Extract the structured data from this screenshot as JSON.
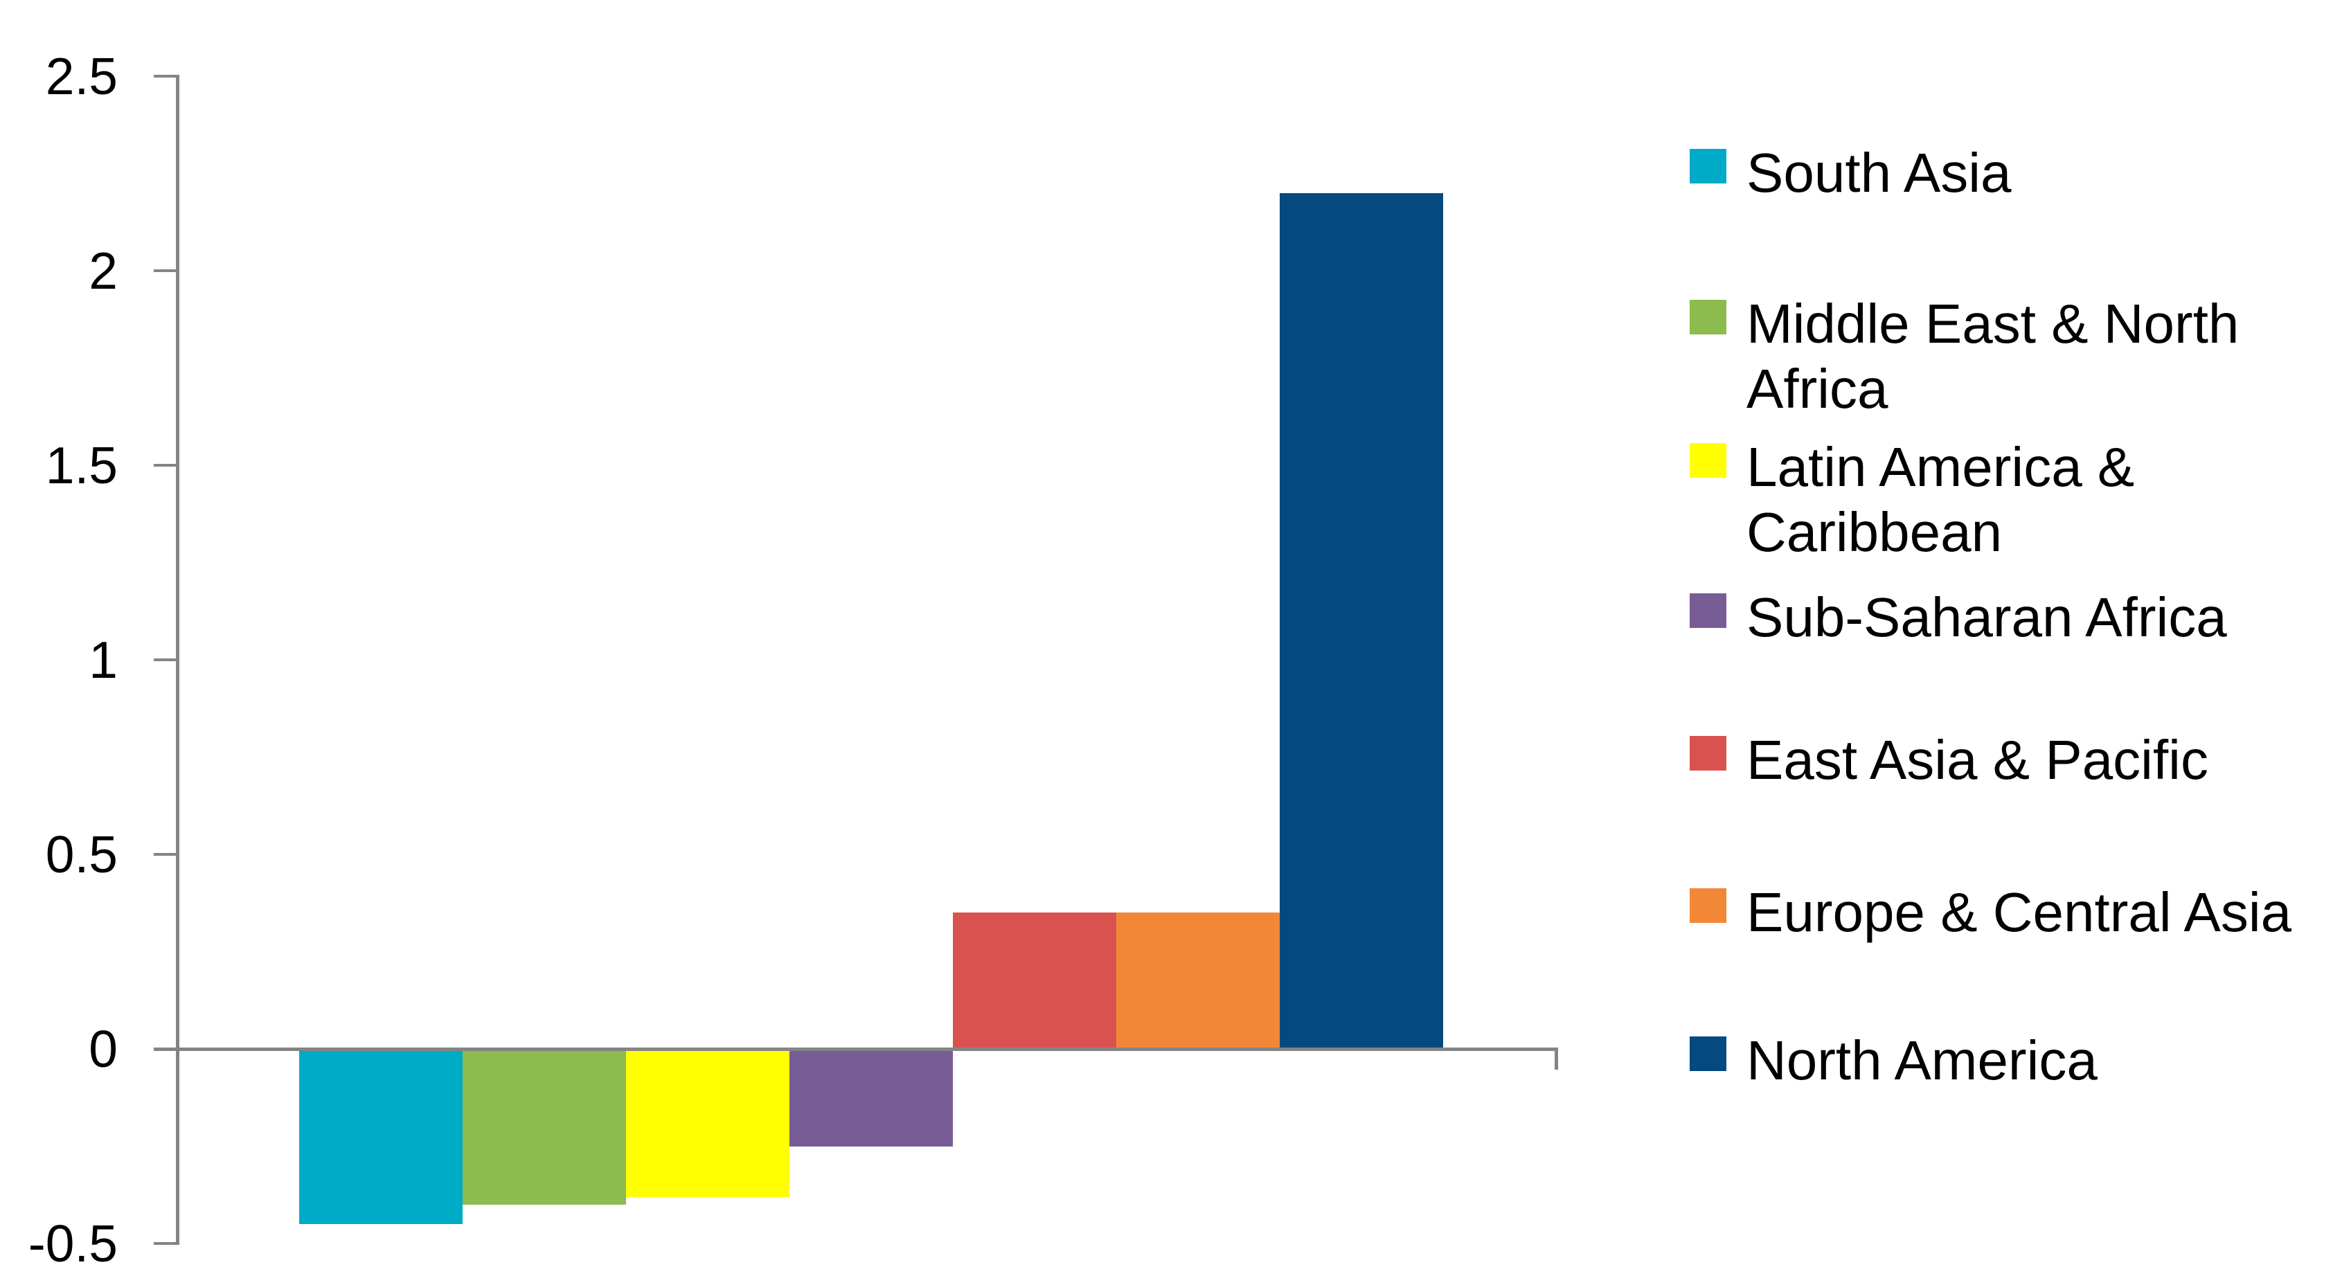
{
  "chart_data": {
    "type": "bar",
    "title": "",
    "categories": [
      ""
    ],
    "series": [
      {
        "name": "South Asia",
        "value": -0.45,
        "color": "#00ABC8"
      },
      {
        "name": "Middle East & North Africa",
        "value": -0.4,
        "color": "#8CBB4E"
      },
      {
        "name": "Latin America & Caribbean",
        "value": -0.38,
        "color": "#FFFF00"
      },
      {
        "name": "Sub-Saharan Africa",
        "value": -0.25,
        "color": "#785C95"
      },
      {
        "name": "East Asia & Pacific",
        "value": 0.35,
        "color": "#D95250"
      },
      {
        "name": "Europe & Central Asia",
        "value": 0.35,
        "color": "#F28837"
      },
      {
        "name": "North America",
        "value": 2.2,
        "color": "#04497F"
      }
    ],
    "xlabel": "",
    "ylabel": "",
    "ylim": [
      -0.5,
      2.5
    ],
    "ytick_values": [
      2.5,
      2,
      1.5,
      1,
      0.5,
      0,
      -0.5
    ],
    "ytick_labels": [
      "2.5",
      "2",
      "1.5",
      "1",
      "0.5",
      "0",
      "-0.5"
    ],
    "grid": "none",
    "legend_position": "right",
    "axis_color": "#848484",
    "text_color": "#000000",
    "background_color": "#FFFFFF"
  }
}
